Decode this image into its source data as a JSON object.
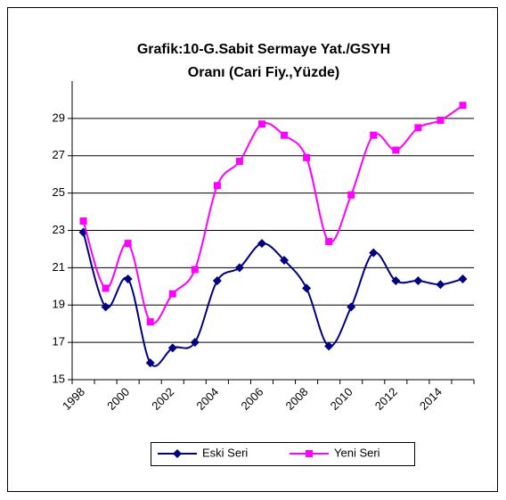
{
  "chart_data": {
    "type": "line",
    "title": [
      "Grafik:10-G.Sabit Sermaye Yat./GSYH",
      "Oranı (Cari Fiy.,Yüzde)"
    ],
    "categories": [
      "1998",
      null,
      "2000",
      null,
      "2002",
      null,
      "2004",
      null,
      "2006",
      null,
      "2008",
      null,
      "2010",
      null,
      "2012",
      null,
      "2014",
      null
    ],
    "series": [
      {
        "name": "Eski Seri",
        "color": "#000080",
        "marker": "diamond",
        "values": [
          22.9,
          18.9,
          20.4,
          15.9,
          16.7,
          17.0,
          20.3,
          21.0,
          22.3,
          21.4,
          19.9,
          16.8,
          18.9,
          21.8,
          20.3,
          20.3,
          20.1,
          20.4
        ]
      },
      {
        "name": "Yeni Seri",
        "color": "#FF00FF",
        "marker": "square",
        "values": [
          23.5,
          19.9,
          22.3,
          18.1,
          19.6,
          20.9,
          25.4,
          26.7,
          28.7,
          28.1,
          26.9,
          22.4,
          24.9,
          28.1,
          27.3,
          28.5,
          28.9,
          29.7
        ]
      }
    ],
    "ylim": [
      15,
      31
    ],
    "yticks": [
      15,
      17,
      19,
      21,
      23,
      25,
      27,
      29
    ],
    "grid": true,
    "smooth": true,
    "legend": "bottom"
  }
}
